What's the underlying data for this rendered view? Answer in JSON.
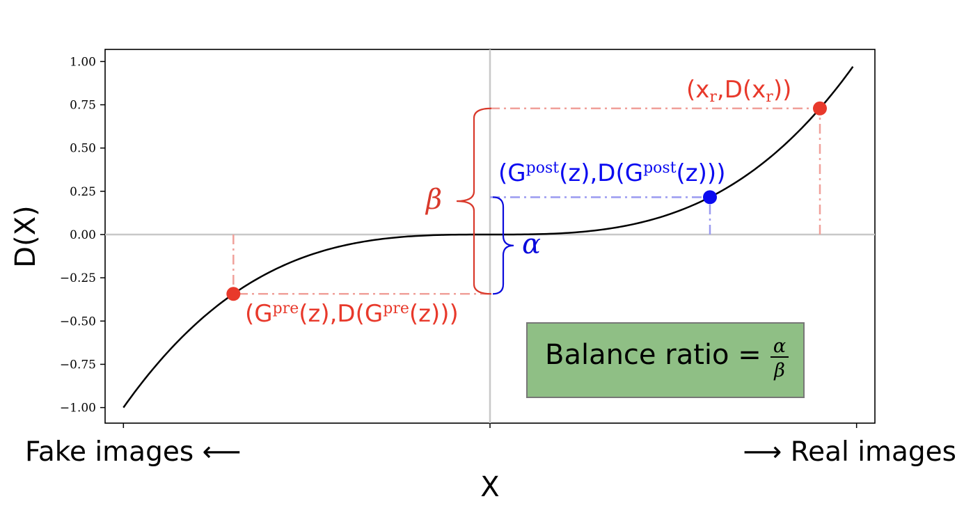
{
  "chart_data": {
    "type": "line",
    "xlabel": "X",
    "ylabel": "D(X)",
    "xlim": [
      -1.05,
      1.05
    ],
    "ylim": [
      -1.09,
      1.07
    ],
    "y_ticks": [
      1.0,
      0.75,
      0.5,
      0.25,
      0.0,
      -0.25,
      -0.5,
      -0.75,
      -1.0
    ],
    "y_tick_labels": [
      "1.00",
      "0.75",
      "0.50",
      "0.25",
      "0.00",
      "−0.25",
      "−0.50",
      "−0.75",
      "−1.00"
    ],
    "x_ticks": [
      -1.0,
      0.0,
      1.0
    ],
    "x_end_labels": {
      "left": "Fake images ⟵",
      "right": "⟶ Real images"
    },
    "grid": false,
    "reference_lines": {
      "x": 0.0,
      "y": 0.0
    },
    "curve": {
      "name": "D(X)",
      "function": "x^3",
      "x_range": [
        -1.0,
        0.99
      ],
      "color": "#000000"
    },
    "points": [
      {
        "id": "pre",
        "x": -0.7,
        "y": -0.343,
        "color": "#e8392b",
        "label_base": "(G",
        "label_sup": "pre",
        "label_mid": "(z),D(G",
        "label_end": "(z)))"
      },
      {
        "id": "post",
        "x": 0.6,
        "y": 0.216,
        "color": "#0a0af0",
        "label_base": "(G",
        "label_sup": "post",
        "label_mid": "(z),D(G",
        "label_end": "(z)))"
      },
      {
        "id": "real",
        "x": 0.9,
        "y": 0.729,
        "color": "#e8392b",
        "label_base": "(x",
        "label_sub": "r",
        "label_mid": ",D(x",
        "label_end": "))"
      }
    ],
    "braces": [
      {
        "symbol": "β",
        "from": -0.343,
        "to": 0.729,
        "color": "#d9392b"
      },
      {
        "symbol": "α",
        "from": -0.343,
        "to": 0.216,
        "color": "#0a0adc"
      }
    ],
    "annotation_box": {
      "text": "Balance ratio =",
      "num": "α",
      "den": "β",
      "fill": "#8fbf85"
    }
  }
}
